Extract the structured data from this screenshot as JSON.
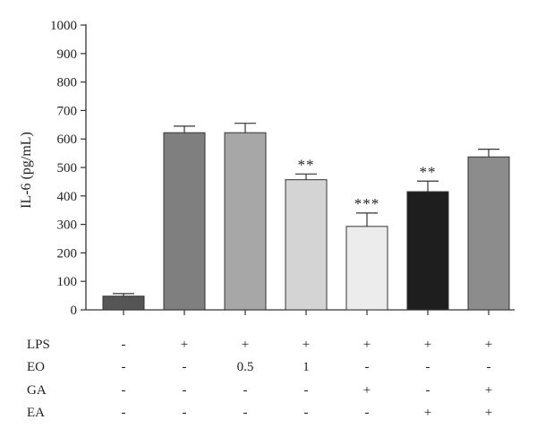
{
  "chart_data": {
    "type": "bar",
    "ylabel": "IL-6 (pg/mL)",
    "ylim": [
      0,
      1000
    ],
    "yticks": [
      0,
      100,
      200,
      300,
      400,
      500,
      600,
      700,
      800,
      900,
      1000
    ],
    "grid": false,
    "series": [
      {
        "values": [
          48,
          622,
          622,
          457,
          293,
          415,
          537
        ],
        "errors": [
          9,
          23,
          33,
          20,
          47,
          37,
          27
        ],
        "colors": [
          "#555555",
          "#7f7f7f",
          "#a7a7a7",
          "#d4d4d4",
          "#ececec",
          "#1e1e1e",
          "#8c8c8c"
        ],
        "significance": [
          "",
          "",
          "",
          "**",
          "***",
          "**",
          ""
        ]
      }
    ],
    "conditions": [
      {
        "label": "LPS",
        "cells": [
          "-",
          "+",
          "+",
          "+",
          "+",
          "+",
          "+"
        ]
      },
      {
        "label": "EO",
        "cells": [
          "-",
          "-",
          "0.5",
          "1",
          "-",
          "-",
          "-"
        ]
      },
      {
        "label": "GA",
        "cells": [
          "-",
          "-",
          "-",
          "-",
          "+",
          "-",
          "+"
        ]
      },
      {
        "label": "EA",
        "cells": [
          "-",
          "-",
          "-",
          "-",
          "-",
          "+",
          "+"
        ]
      }
    ]
  }
}
